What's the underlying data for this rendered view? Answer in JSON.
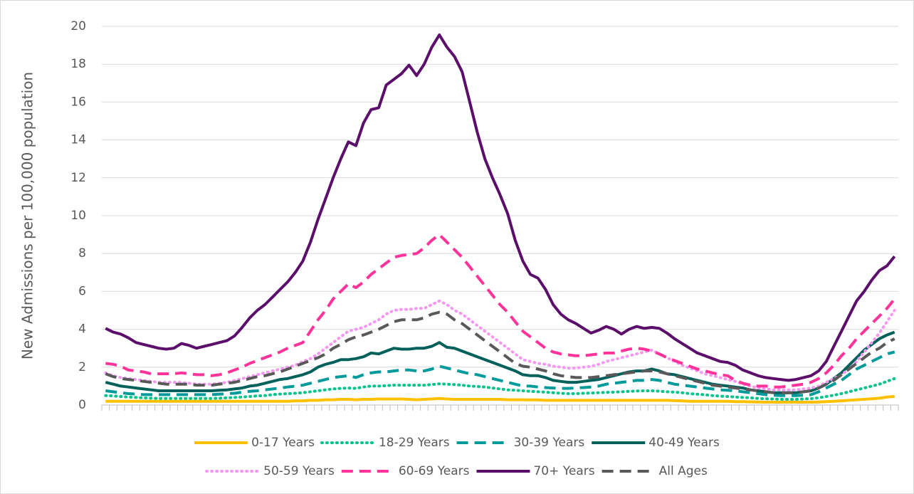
{
  "chart_data": {
    "type": "line",
    "y_label": "New Admissions per 100,000 population",
    "ylim": [
      0,
      20
    ],
    "yticks": [
      0,
      2,
      4,
      6,
      8,
      10,
      12,
      14,
      16,
      18,
      20
    ],
    "grid": true,
    "legend": "bottom",
    "categories": [
      null,
      null,
      null,
      null,
      null,
      null,
      null,
      null,
      null,
      null,
      null,
      null,
      null,
      null,
      null,
      null,
      null,
      null,
      null,
      null,
      null,
      null,
      null,
      null,
      null,
      null,
      null,
      null,
      null,
      null,
      null,
      null,
      null,
      null,
      null,
      null,
      null,
      null,
      null,
      null,
      null,
      null,
      null,
      null,
      null,
      null,
      null,
      null,
      null,
      null,
      null,
      null,
      null,
      null,
      null,
      null,
      null,
      null,
      null,
      null,
      null,
      null,
      null,
      null,
      null,
      null,
      null,
      null,
      null,
      null,
      null,
      null,
      null,
      null,
      null,
      null,
      null,
      null,
      null,
      null,
      null,
      null,
      null,
      null,
      null,
      null,
      null,
      null,
      null,
      null,
      null,
      null,
      null,
      null,
      null,
      null,
      null,
      null,
      null,
      null,
      null,
      null,
      null,
      null,
      null
    ],
    "series": [
      {
        "name": "0-17 Years",
        "color": "#ffc000",
        "dash": "solid",
        "values": [
          0.2,
          0.2,
          0.2,
          0.2,
          0.2,
          0.2,
          0.2,
          0.2,
          0.2,
          0.2,
          0.2,
          0.2,
          0.2,
          0.2,
          0.2,
          0.2,
          0.2,
          0.2,
          0.2,
          0.2,
          0.2,
          0.2,
          0.2,
          0.2,
          0.2,
          0.22,
          0.22,
          0.25,
          0.25,
          0.28,
          0.28,
          0.3,
          0.3,
          0.28,
          0.3,
          0.3,
          0.32,
          0.32,
          0.32,
          0.32,
          0.3,
          0.28,
          0.3,
          0.32,
          0.35,
          0.32,
          0.3,
          0.3,
          0.3,
          0.3,
          0.3,
          0.3,
          0.3,
          0.28,
          0.28,
          0.28,
          0.27,
          0.27,
          0.25,
          0.25,
          0.25,
          0.25,
          0.25,
          0.25,
          0.25,
          0.25,
          0.25,
          0.25,
          0.25,
          0.25,
          0.25,
          0.25,
          0.25,
          0.25,
          0.25,
          0.23,
          0.22,
          0.2,
          0.2,
          0.2,
          0.2,
          0.2,
          0.2,
          0.18,
          0.18,
          0.17,
          0.16,
          0.15,
          0.15,
          0.15,
          0.15,
          0.15,
          0.15,
          0.15,
          0.16,
          0.18,
          0.2,
          0.22,
          0.25,
          0.28,
          0.3,
          0.33,
          0.36,
          0.42,
          0.45
        ]
      },
      {
        "name": "18-29 Years",
        "color": "#00c389",
        "dash": "dotted",
        "values": [
          0.5,
          0.48,
          0.45,
          0.42,
          0.4,
          0.38,
          0.36,
          0.35,
          0.35,
          0.35,
          0.35,
          0.35,
          0.35,
          0.35,
          0.35,
          0.36,
          0.38,
          0.4,
          0.42,
          0.45,
          0.48,
          0.5,
          0.55,
          0.58,
          0.6,
          0.62,
          0.65,
          0.7,
          0.75,
          0.8,
          0.85,
          0.88,
          0.9,
          0.88,
          0.95,
          1.0,
          1.0,
          1.02,
          1.05,
          1.05,
          1.05,
          1.05,
          1.05,
          1.08,
          1.12,
          1.1,
          1.08,
          1.05,
          1.0,
          0.98,
          0.95,
          0.9,
          0.85,
          0.8,
          0.78,
          0.75,
          0.72,
          0.7,
          0.68,
          0.65,
          0.62,
          0.6,
          0.6,
          0.62,
          0.63,
          0.65,
          0.67,
          0.68,
          0.7,
          0.72,
          0.74,
          0.75,
          0.75,
          0.73,
          0.7,
          0.68,
          0.65,
          0.6,
          0.57,
          0.54,
          0.5,
          0.47,
          0.45,
          0.42,
          0.4,
          0.38,
          0.35,
          0.33,
          0.32,
          0.3,
          0.3,
          0.3,
          0.32,
          0.34,
          0.38,
          0.45,
          0.52,
          0.6,
          0.7,
          0.8,
          0.9,
          1.0,
          1.1,
          1.25,
          1.4
        ]
      },
      {
        "name": "30-39 Years",
        "color": "#009a9a",
        "dash": "dashed",
        "values": [
          0.75,
          0.7,
          0.65,
          0.6,
          0.58,
          0.55,
          0.55,
          0.55,
          0.55,
          0.55,
          0.55,
          0.55,
          0.55,
          0.55,
          0.55,
          0.57,
          0.6,
          0.62,
          0.68,
          0.72,
          0.75,
          0.8,
          0.85,
          0.9,
          0.95,
          1.0,
          1.05,
          1.15,
          1.25,
          1.35,
          1.45,
          1.5,
          1.55,
          1.45,
          1.6,
          1.7,
          1.75,
          1.75,
          1.8,
          1.85,
          1.85,
          1.8,
          1.8,
          1.9,
          2.05,
          1.95,
          1.85,
          1.75,
          1.65,
          1.6,
          1.5,
          1.4,
          1.3,
          1.2,
          1.1,
          1.0,
          1.0,
          0.95,
          0.92,
          0.9,
          0.88,
          0.88,
          0.9,
          0.92,
          0.95,
          1.0,
          1.1,
          1.15,
          1.2,
          1.25,
          1.3,
          1.3,
          1.35,
          1.3,
          1.2,
          1.1,
          1.05,
          1.0,
          0.95,
          0.9,
          0.85,
          0.8,
          0.78,
          0.75,
          0.7,
          0.65,
          0.6,
          0.55,
          0.52,
          0.5,
          0.5,
          0.5,
          0.52,
          0.55,
          0.7,
          0.9,
          1.1,
          1.3,
          1.6,
          1.9,
          2.1,
          2.3,
          2.5,
          2.7,
          2.8
        ]
      },
      {
        "name": "40-49 Years",
        "color": "#00605a",
        "dash": "solid",
        "values": [
          1.2,
          1.1,
          1.0,
          0.95,
          0.9,
          0.85,
          0.8,
          0.75,
          0.75,
          0.75,
          0.75,
          0.75,
          0.75,
          0.75,
          0.75,
          0.78,
          0.8,
          0.85,
          0.9,
          1.0,
          1.05,
          1.15,
          1.25,
          1.35,
          1.4,
          1.5,
          1.6,
          1.75,
          2.0,
          2.15,
          2.25,
          2.4,
          2.4,
          2.45,
          2.55,
          2.75,
          2.7,
          2.85,
          3.0,
          2.95,
          2.95,
          3.0,
          3.0,
          3.1,
          3.3,
          3.05,
          3.0,
          2.85,
          2.7,
          2.55,
          2.4,
          2.25,
          2.1,
          1.95,
          1.8,
          1.6,
          1.55,
          1.55,
          1.45,
          1.3,
          1.25,
          1.2,
          1.2,
          1.25,
          1.3,
          1.35,
          1.45,
          1.55,
          1.65,
          1.75,
          1.8,
          1.8,
          1.9,
          1.8,
          1.65,
          1.6,
          1.5,
          1.4,
          1.3,
          1.2,
          1.1,
          1.05,
          1.0,
          0.95,
          0.9,
          0.8,
          0.75,
          0.7,
          0.65,
          0.65,
          0.65,
          0.65,
          0.7,
          0.75,
          0.9,
          1.1,
          1.4,
          1.7,
          2.1,
          2.5,
          2.9,
          3.2,
          3.5,
          3.7,
          3.85
        ]
      },
      {
        "name": "50-59 Years",
        "color": "#f598f2",
        "dash": "dotted",
        "values": [
          1.7,
          1.55,
          1.45,
          1.4,
          1.35,
          1.3,
          1.25,
          1.2,
          1.2,
          1.2,
          1.2,
          1.15,
          1.1,
          1.1,
          1.1,
          1.15,
          1.2,
          1.3,
          1.4,
          1.5,
          1.6,
          1.7,
          1.8,
          1.9,
          2.0,
          2.1,
          2.3,
          2.45,
          2.7,
          3.0,
          3.3,
          3.6,
          3.9,
          4.0,
          4.1,
          4.3,
          4.5,
          4.8,
          5.0,
          5.05,
          5.05,
          5.1,
          5.1,
          5.3,
          5.5,
          5.3,
          5.0,
          4.8,
          4.5,
          4.2,
          3.9,
          3.6,
          3.3,
          3.0,
          2.7,
          2.4,
          2.3,
          2.2,
          2.15,
          2.05,
          2.0,
          1.95,
          1.95,
          2.0,
          2.05,
          2.15,
          2.3,
          2.4,
          2.5,
          2.6,
          2.7,
          2.8,
          2.9,
          2.7,
          2.5,
          2.3,
          2.1,
          1.95,
          1.8,
          1.65,
          1.55,
          1.45,
          1.35,
          1.25,
          1.1,
          1.0,
          0.9,
          0.85,
          0.8,
          0.8,
          0.8,
          0.8,
          0.85,
          0.9,
          1.0,
          1.2,
          1.4,
          1.6,
          1.9,
          2.3,
          2.8,
          3.3,
          3.8,
          4.4,
          5.0
        ]
      },
      {
        "name": "60-69 Years",
        "color": "#ff3399",
        "dash": "dashed",
        "values": [
          2.2,
          2.15,
          2.05,
          1.85,
          1.8,
          1.75,
          1.65,
          1.65,
          1.65,
          1.65,
          1.7,
          1.65,
          1.6,
          1.6,
          1.55,
          1.6,
          1.7,
          1.85,
          2.0,
          2.2,
          2.35,
          2.5,
          2.65,
          2.8,
          3.0,
          3.15,
          3.3,
          3.9,
          4.5,
          5.0,
          5.6,
          6.0,
          6.4,
          6.2,
          6.5,
          6.9,
          7.2,
          7.5,
          7.8,
          7.9,
          7.95,
          8.0,
          8.3,
          8.7,
          9.0,
          8.6,
          8.2,
          7.8,
          7.3,
          6.8,
          6.3,
          5.8,
          5.3,
          4.9,
          4.4,
          3.9,
          3.6,
          3.3,
          3.0,
          2.8,
          2.7,
          2.65,
          2.6,
          2.6,
          2.65,
          2.7,
          2.75,
          2.75,
          2.85,
          2.95,
          3.0,
          2.95,
          2.85,
          2.7,
          2.5,
          2.35,
          2.2,
          2.05,
          1.9,
          1.8,
          1.7,
          1.6,
          1.55,
          1.3,
          1.15,
          1.05,
          1.0,
          1.0,
          0.95,
          0.95,
          1.0,
          1.05,
          1.1,
          1.2,
          1.4,
          1.7,
          2.1,
          2.6,
          3.0,
          3.5,
          3.9,
          4.3,
          4.7,
          5.1,
          5.6
        ]
      },
      {
        "name": "70+ Years",
        "color": "#5b0f6b",
        "dash": "solid",
        "values": [
          4.05,
          3.85,
          3.75,
          3.55,
          3.3,
          3.2,
          3.1,
          3.0,
          2.95,
          3.0,
          3.25,
          3.15,
          3.0,
          3.1,
          3.2,
          3.3,
          3.4,
          3.65,
          4.1,
          4.6,
          5.0,
          5.3,
          5.7,
          6.1,
          6.5,
          7.0,
          7.6,
          8.6,
          9.8,
          10.9,
          12.0,
          13.0,
          13.9,
          13.7,
          14.9,
          15.6,
          15.7,
          16.9,
          17.2,
          17.5,
          17.95,
          17.4,
          18.0,
          18.9,
          19.55,
          18.9,
          18.4,
          17.6,
          16.0,
          14.4,
          13.0,
          12.0,
          11.1,
          10.1,
          8.7,
          7.6,
          6.9,
          6.7,
          6.1,
          5.3,
          4.8,
          4.5,
          4.3,
          4.05,
          3.8,
          3.95,
          4.15,
          4.0,
          3.75,
          4.0,
          4.15,
          4.05,
          4.1,
          4.05,
          3.8,
          3.5,
          3.25,
          3.0,
          2.75,
          2.6,
          2.45,
          2.3,
          2.25,
          2.1,
          1.85,
          1.7,
          1.55,
          1.45,
          1.4,
          1.35,
          1.3,
          1.35,
          1.45,
          1.55,
          1.8,
          2.3,
          3.1,
          3.9,
          4.7,
          5.5,
          6.0,
          6.6,
          7.1,
          7.35,
          7.85
        ]
      },
      {
        "name": "All Ages",
        "color": "#595959",
        "dash": "dashed",
        "values": [
          1.65,
          1.5,
          1.4,
          1.35,
          1.3,
          1.25,
          1.2,
          1.15,
          1.1,
          1.1,
          1.1,
          1.1,
          1.05,
          1.05,
          1.05,
          1.1,
          1.15,
          1.2,
          1.3,
          1.4,
          1.5,
          1.55,
          1.65,
          1.75,
          1.9,
          2.05,
          2.2,
          2.35,
          2.5,
          2.7,
          3.0,
          3.2,
          3.45,
          3.6,
          3.7,
          3.85,
          4.0,
          4.2,
          4.4,
          4.5,
          4.5,
          4.5,
          4.6,
          4.8,
          4.9,
          4.8,
          4.5,
          4.3,
          4.0,
          3.7,
          3.4,
          3.1,
          2.8,
          2.5,
          2.2,
          2.05,
          2.0,
          1.9,
          1.8,
          1.65,
          1.55,
          1.5,
          1.45,
          1.45,
          1.45,
          1.5,
          1.55,
          1.6,
          1.65,
          1.7,
          1.75,
          1.8,
          1.8,
          1.75,
          1.65,
          1.55,
          1.45,
          1.35,
          1.25,
          1.15,
          1.05,
          1.0,
          0.95,
          0.9,
          0.85,
          0.8,
          0.75,
          0.7,
          0.65,
          0.65,
          0.65,
          0.65,
          0.7,
          0.75,
          0.9,
          1.1,
          1.3,
          1.6,
          1.9,
          2.2,
          2.5,
          2.8,
          3.0,
          3.3,
          3.5
        ]
      }
    ]
  }
}
